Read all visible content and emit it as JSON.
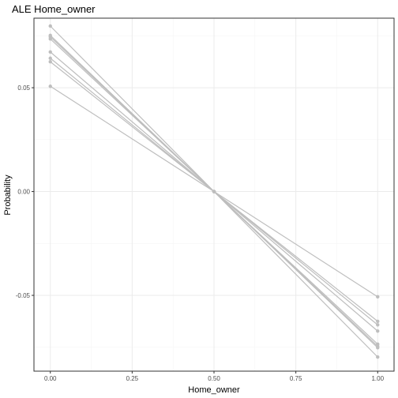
{
  "chart_data": {
    "type": "line",
    "title": "ALE Home_owner",
    "xlabel": "Home_owner",
    "ylabel": "Probability",
    "xlim": [
      -0.05,
      1.05
    ],
    "ylim": [
      -0.0865,
      0.0835
    ],
    "x_ticks": [
      0.0,
      0.25,
      0.5,
      0.75,
      1.0
    ],
    "x_tick_labels": [
      "0.00",
      "0.25",
      "0.50",
      "0.75",
      "1.00"
    ],
    "y_ticks": [
      -0.05,
      0.0,
      0.05
    ],
    "y_tick_labels": [
      "-0.05",
      "0.00",
      "0.05"
    ],
    "grid": true,
    "legend": "none",
    "x": [
      0.0,
      0.5,
      1.0
    ],
    "series": [
      {
        "values": [
          0.0797,
          0.0,
          -0.0797
        ]
      },
      {
        "values": [
          0.0752,
          0.0,
          -0.0752
        ]
      },
      {
        "values": [
          0.0745,
          0.0,
          -0.0745
        ]
      },
      {
        "values": [
          0.0735,
          0.0,
          -0.0735
        ]
      },
      {
        "values": [
          0.0672,
          0.0,
          -0.0672
        ]
      },
      {
        "values": [
          0.0642,
          0.0,
          -0.0642
        ]
      },
      {
        "values": [
          0.0625,
          0.0,
          -0.0625
        ]
      },
      {
        "values": [
          0.0507,
          0.0,
          -0.0507
        ]
      }
    ],
    "colors": {
      "series": "#bebebe",
      "grid_major": "#ebebeb",
      "grid_minor": "#f5f5f5",
      "panel_border": "#333333",
      "tick": "#333333"
    }
  }
}
